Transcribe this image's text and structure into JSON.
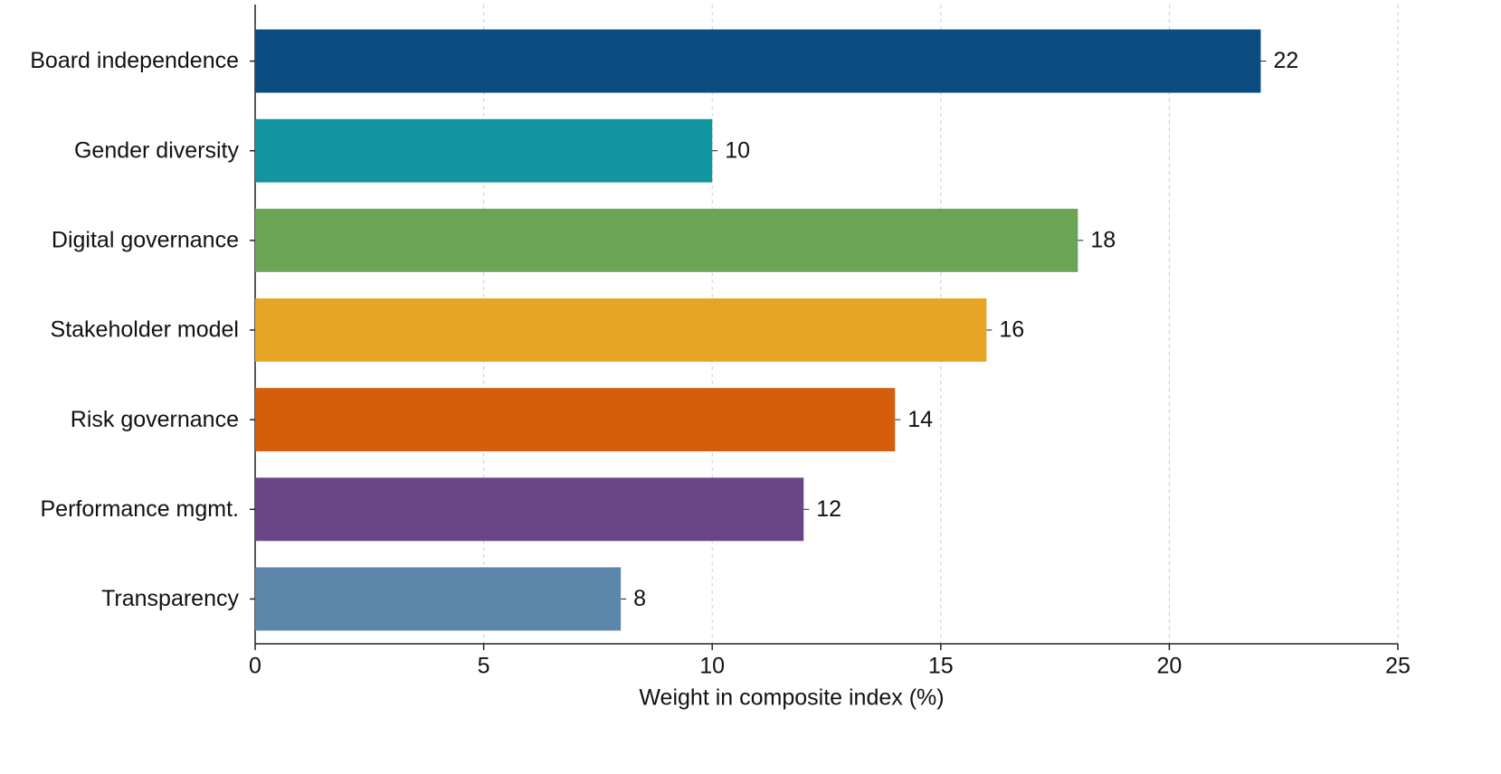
{
  "chart_data": {
    "type": "bar",
    "orientation": "horizontal",
    "categories": [
      "Board independence",
      "Gender diversity",
      "Digital governance",
      "Stakeholder model",
      "Risk governance",
      "Performance mgmt.",
      "Transparency"
    ],
    "values": [
      22,
      10,
      18,
      16,
      14,
      12,
      8
    ],
    "colors": [
      "#0b4d80",
      "#1193a0",
      "#6aa556",
      "#e6a524",
      "#d45e0b",
      "#6b4486",
      "#5c87aa"
    ],
    "xlabel": "Weight in composite index (%)",
    "xlim": [
      0,
      25
    ],
    "xticks": [
      0,
      5,
      10,
      15,
      20,
      25
    ],
    "grid": true
  }
}
